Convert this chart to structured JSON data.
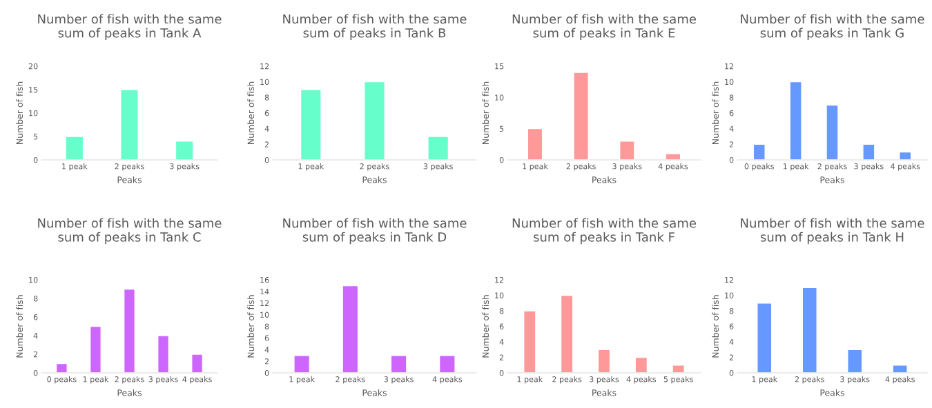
{
  "chart_data": [
    {
      "type": "bar",
      "title": "Number of fish with the same\nsum of peaks in Tank A",
      "xlabel": "Peaks",
      "ylabel": "Number of fish",
      "categories": [
        "1 peak",
        "2 peaks",
        "3 peaks"
      ],
      "values": [
        5,
        15,
        4
      ],
      "color": "#66ffcc",
      "ylim": [
        0,
        20
      ],
      "yticks": [
        0,
        5,
        10,
        15,
        20
      ],
      "grid": false,
      "legend": false
    },
    {
      "type": "bar",
      "title": "Number of fish with the same\nsum of peaks in Tank B",
      "xlabel": "Peaks",
      "ylabel": "Number of fish",
      "categories": [
        "1 peak",
        "2 peaks",
        "3 peaks"
      ],
      "values": [
        9,
        10,
        3
      ],
      "color": "#66ffcc",
      "ylim": [
        0,
        12
      ],
      "yticks": [
        0,
        2,
        4,
        6,
        8,
        10,
        12
      ],
      "grid": false,
      "legend": false
    },
    {
      "type": "bar",
      "title": "Number of fish with the same\nsum of peaks in Tank E",
      "xlabel": "Peaks",
      "ylabel": "Number of fish",
      "categories": [
        "1 peak",
        "2 peaks",
        "3 peaks",
        "4 peaks"
      ],
      "values": [
        5,
        14,
        3,
        1
      ],
      "color": "#ff9999",
      "ylim": [
        0,
        15
      ],
      "yticks": [
        0,
        5,
        10,
        15
      ],
      "grid": false,
      "legend": false
    },
    {
      "type": "bar",
      "title": "Number of fish with the same\nsum of peaks in Tank G",
      "xlabel": "Peaks",
      "ylabel": "Number of fish",
      "categories": [
        "0 peaks",
        "1 peak",
        "2 peaks",
        "3 peaks",
        "4 peaks"
      ],
      "values": [
        2,
        10,
        7,
        2,
        1
      ],
      "color": "#6699ff",
      "ylim": [
        0,
        12
      ],
      "yticks": [
        0,
        2,
        4,
        6,
        8,
        10,
        12
      ],
      "grid": false,
      "legend": false
    },
    {
      "type": "bar",
      "title": "Number of fish with the same\nsum of peaks in Tank C",
      "xlabel": "Peaks",
      "ylabel": "Number of fish",
      "categories": [
        "0 peaks",
        "1 peak",
        "2 peaks",
        "3 peaks",
        "4 peaks"
      ],
      "values": [
        1,
        5,
        9,
        4,
        2
      ],
      "color": "#cc66ff",
      "ylim": [
        0,
        10
      ],
      "yticks": [
        0,
        2,
        4,
        6,
        8,
        10
      ],
      "grid": false,
      "legend": false
    },
    {
      "type": "bar",
      "title": "Number of fish with the same\nsum of peaks in Tank D",
      "xlabel": "Peaks",
      "ylabel": "Number of fish",
      "categories": [
        "1 peak",
        "2 peaks",
        "3 peaks",
        "4 peaks"
      ],
      "values": [
        3,
        15,
        3,
        3
      ],
      "color": "#cc66ff",
      "ylim": [
        0,
        16
      ],
      "yticks": [
        0,
        2,
        4,
        6,
        8,
        10,
        12,
        14,
        16
      ],
      "grid": false,
      "legend": false
    },
    {
      "type": "bar",
      "title": "Number of fish with the same\nsum of peaks in Tank F",
      "xlabel": "Peaks",
      "ylabel": "Number of fish",
      "categories": [
        "1 peak",
        "2 peaks",
        "3 peaks",
        "4 peaks",
        "5 peaks"
      ],
      "values": [
        8,
        10,
        3,
        2,
        1
      ],
      "color": "#ff9999",
      "ylim": [
        0,
        12
      ],
      "yticks": [
        0,
        2,
        4,
        6,
        8,
        10,
        12
      ],
      "grid": false,
      "legend": false
    },
    {
      "type": "bar",
      "title": "Number of fish with the same\nsum of peaks in Tank H",
      "xlabel": "Peaks",
      "ylabel": "Number of fish",
      "categories": [
        "1 peak",
        "2 peaks",
        "3 peaks",
        "4 peaks"
      ],
      "values": [
        9,
        11,
        3,
        1
      ],
      "color": "#6699ff",
      "ylim": [
        0,
        12
      ],
      "yticks": [
        0,
        2,
        4,
        6,
        8,
        10,
        12
      ],
      "grid": false,
      "legend": false
    }
  ]
}
